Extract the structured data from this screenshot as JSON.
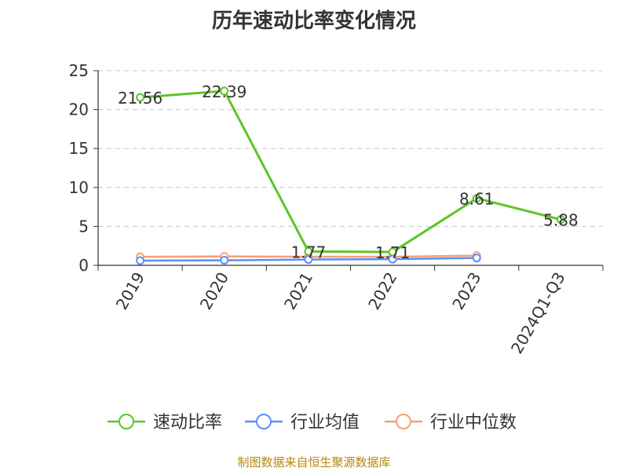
{
  "title": "历年速动比率变化情况",
  "source": "制图数据来自恒生聚源数据库",
  "chart_data": {
    "type": "line",
    "title": "历年速动比率变化情况",
    "categories": [
      "2019",
      "2020",
      "2021",
      "2022",
      "2023",
      "2024Q1-Q3"
    ],
    "ylim": [
      0,
      25
    ],
    "yticks": [
      0,
      5,
      10,
      15,
      20,
      25
    ],
    "grid": true,
    "legend_position": "bottom",
    "series": [
      {
        "name": "速动比率",
        "color": "#5cc429",
        "values": [
          21.56,
          22.39,
          1.77,
          1.71,
          8.61,
          5.88
        ],
        "labels": [
          "21.56",
          "22.39",
          "1.77",
          "1.71",
          "8.61",
          "5.88"
        ]
      },
      {
        "name": "行业均值",
        "color": "#5b8ff9",
        "values": [
          0.6,
          0.65,
          0.75,
          0.8,
          0.95,
          null
        ]
      },
      {
        "name": "行业中位数",
        "color": "#f7a075",
        "values": [
          1.1,
          1.15,
          1.1,
          1.1,
          1.25,
          null
        ]
      }
    ]
  }
}
